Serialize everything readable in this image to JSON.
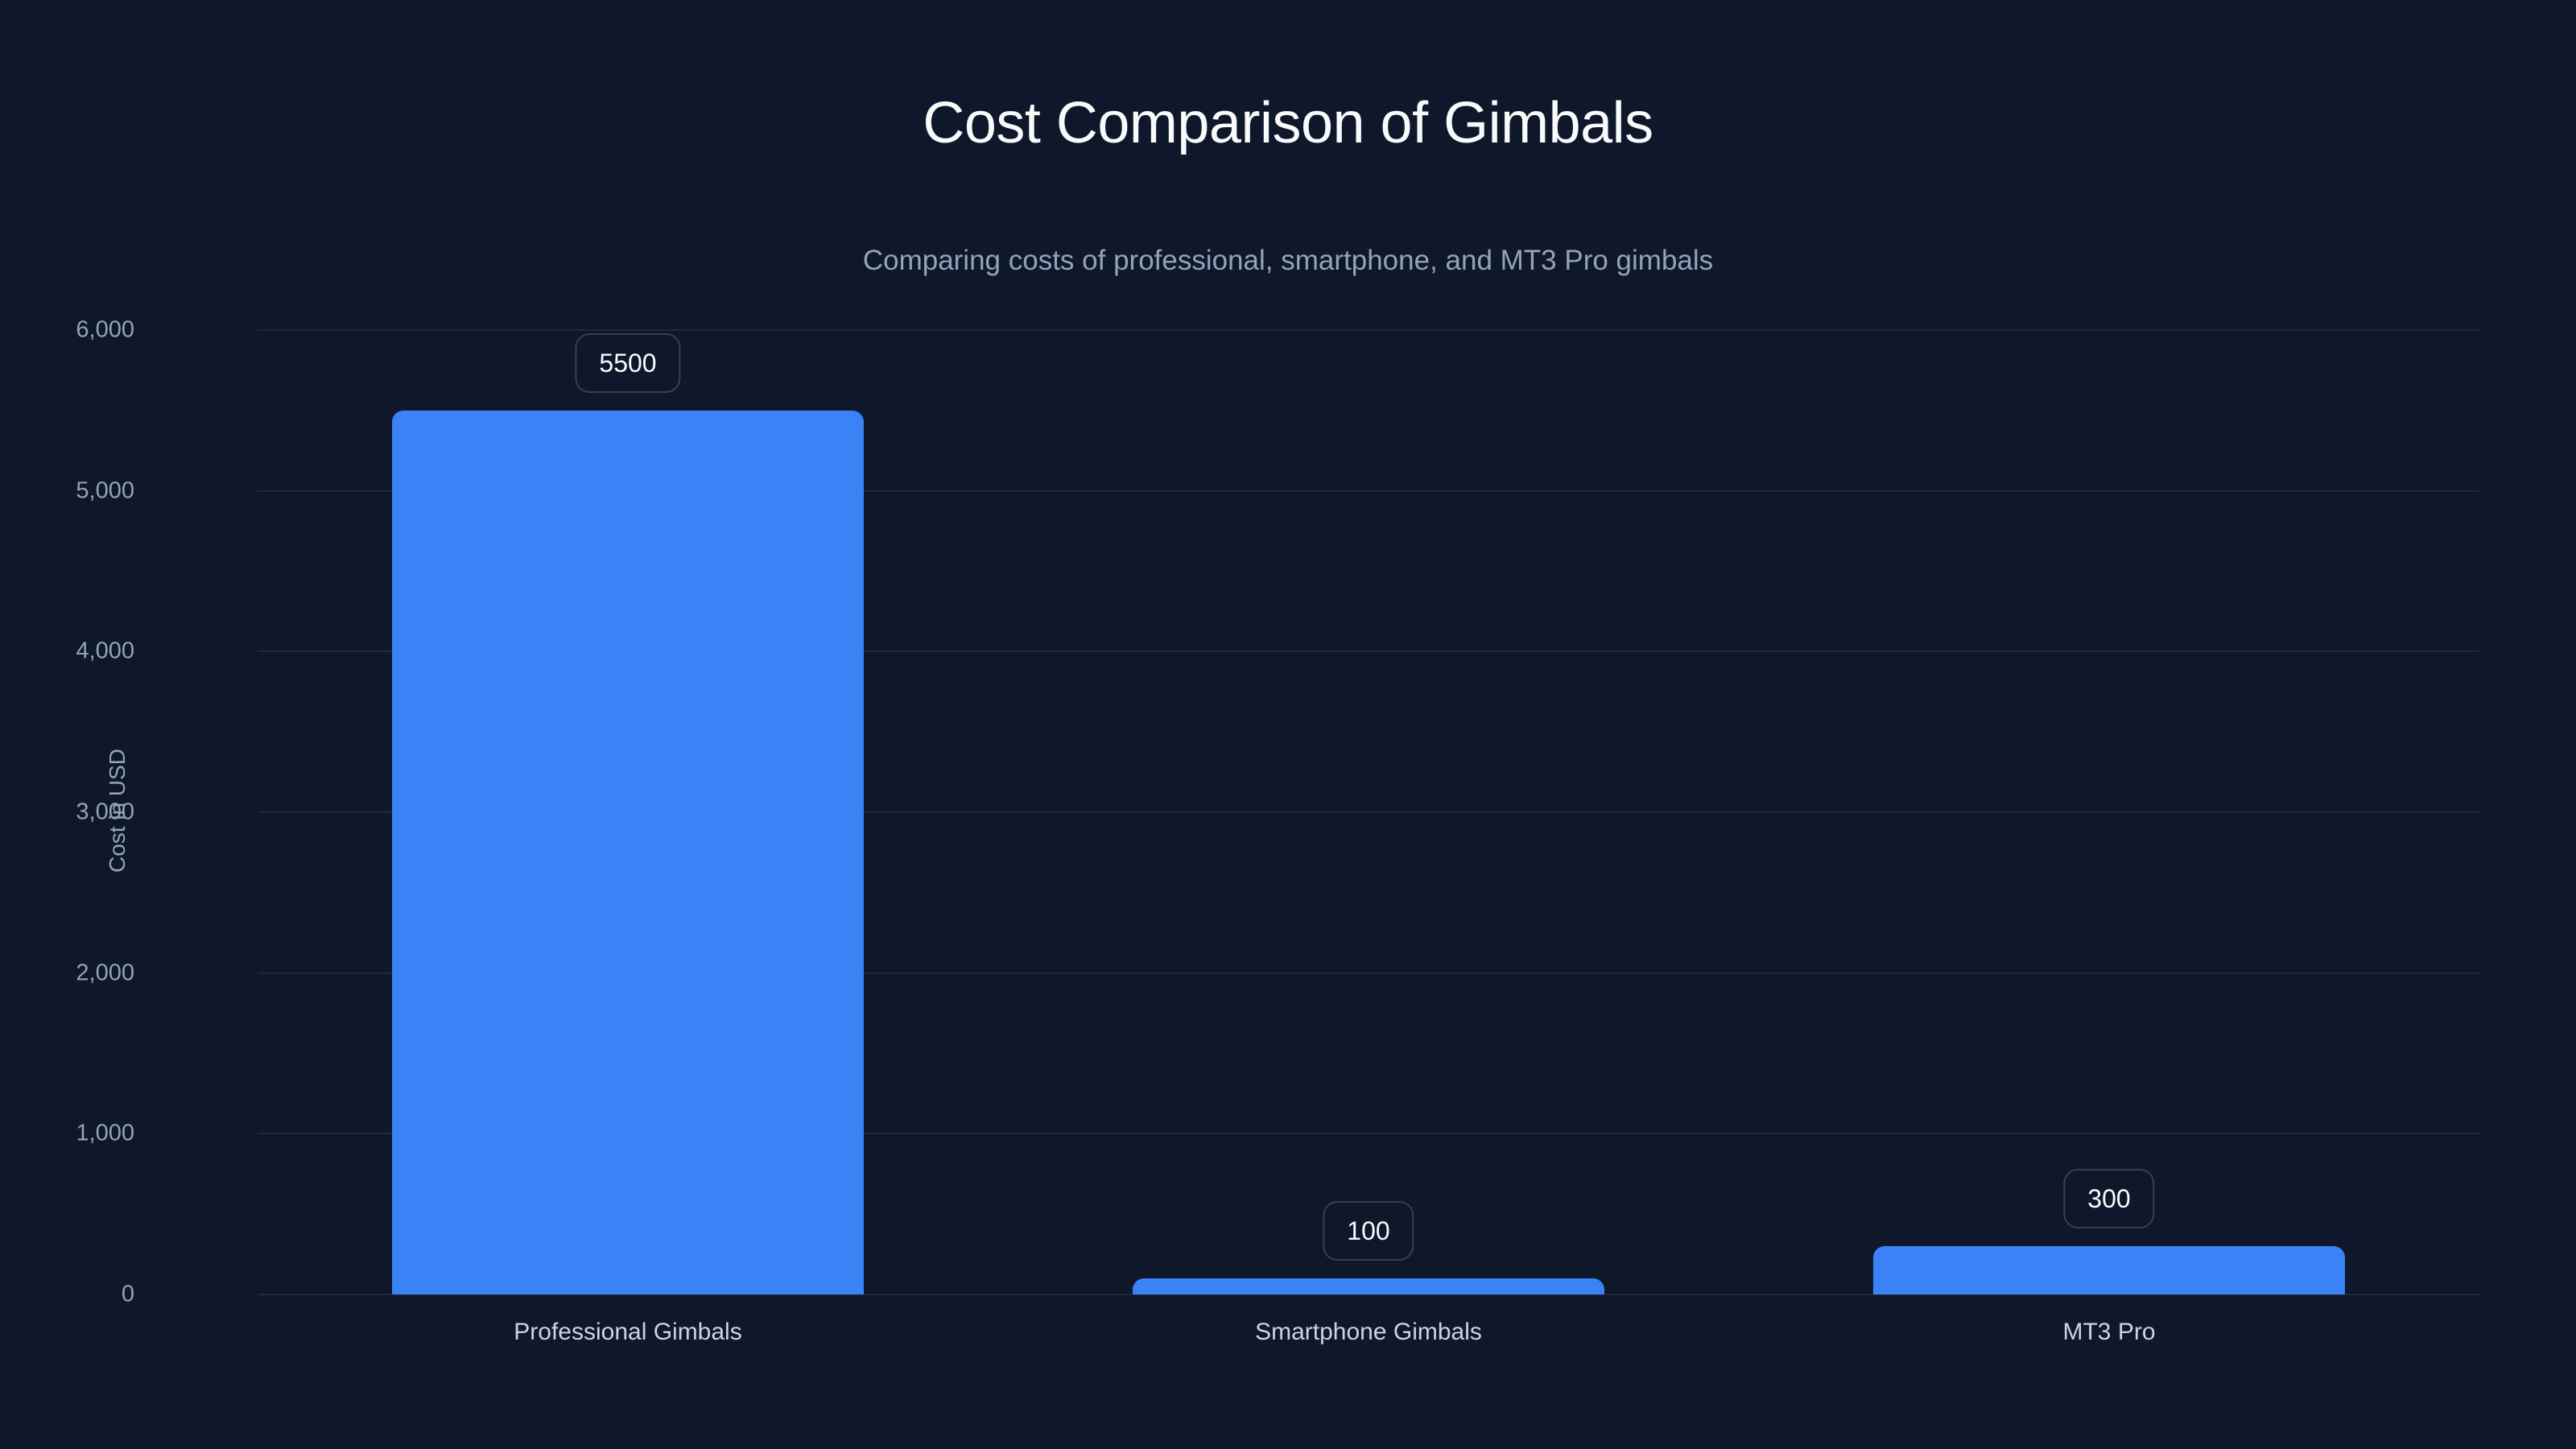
{
  "chart_data": {
    "type": "bar",
    "title": "Cost Comparison of Gimbals",
    "subtitle": "Comparing costs of professional, smartphone, and MT3 Pro gimbals",
    "xlabel": "",
    "ylabel": "Cost in USD",
    "categories": [
      "Professional Gimbals",
      "Smartphone Gimbals",
      "MT3 Pro"
    ],
    "values": [
      5500,
      100,
      300
    ],
    "data_labels": [
      "5500",
      "100",
      "300"
    ],
    "ylim": [
      0,
      6000
    ],
    "yticks": [
      0,
      1000,
      2000,
      3000,
      4000,
      5000,
      6000
    ],
    "ytick_labels": [
      "0",
      "1,000",
      "2,000",
      "3,000",
      "4,000",
      "5,000",
      "6,000"
    ],
    "grid": true,
    "legend": null,
    "colors": {
      "background": "#0f172a",
      "bar": "#3b82f6",
      "grid": "#1e293b",
      "badge_border": "#334155",
      "title": "#f8fafc",
      "axis_text": "#94a3b8"
    }
  }
}
